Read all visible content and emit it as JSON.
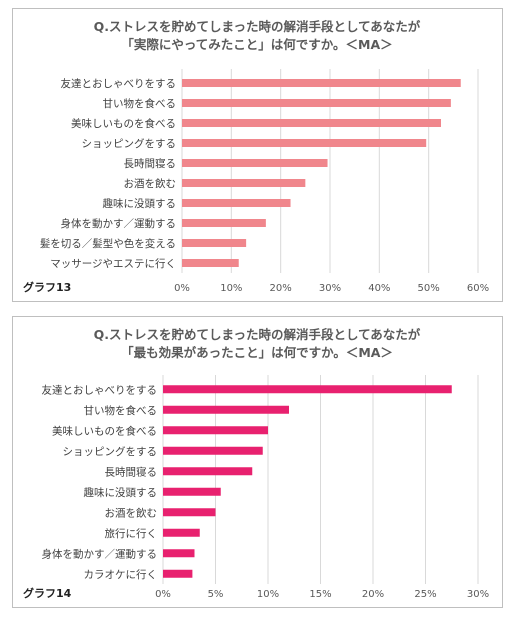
{
  "colors": {
    "chart1_bar": "#f0868c",
    "chart2_bar": "#e8216f",
    "grid": "#d9d9d9"
  },
  "chart_data": [
    {
      "type": "bar",
      "orientation": "horizontal",
      "title_lines": [
        "Q.ストレスを貯めてしまった時の解消手段としてあなたが",
        "「実際にやってみたこと」は何ですか。＜MA＞"
      ],
      "graph_label": "グラフ13",
      "categories": [
        "友達とおしゃべりをする",
        "甘い物を食べる",
        "美味しいものを食べる",
        "ショッピングをする",
        "長時間寝る",
        "お酒を飲む",
        "趣味に没頭する",
        "身体を動かす／運動する",
        "髪を切る／髪型や色を変える",
        "マッサージやエステに行く"
      ],
      "values": [
        56.5,
        54.5,
        52.5,
        49.5,
        29.5,
        25.0,
        22.0,
        17.0,
        13.0,
        11.5
      ],
      "xlim": [
        0,
        60
      ],
      "x_ticks": [
        "0%",
        "10%",
        "20%",
        "30%",
        "40%",
        "50%",
        "60%"
      ],
      "grid": true
    },
    {
      "type": "bar",
      "orientation": "horizontal",
      "title_lines": [
        "Q.ストレスを貯めてしまった時の解消手段としてあなたが",
        "「最も効果があったこと」は何ですか。＜MA＞"
      ],
      "graph_label": "グラフ14",
      "categories": [
        "友達とおしゃべりをする",
        "甘い物を食べる",
        "美味しいものを食べる",
        "ショッピングをする",
        "長時間寝る",
        "趣味に没頭する",
        "お酒を飲む",
        "旅行に行く",
        "身体を動かす／運動する",
        "カラオケに行く"
      ],
      "values": [
        27.5,
        12.0,
        10.0,
        9.5,
        8.5,
        5.5,
        5.0,
        3.5,
        3.0,
        2.8
      ],
      "xlim": [
        0,
        30
      ],
      "x_ticks": [
        "0%",
        "5%",
        "10%",
        "15%",
        "20%",
        "25%",
        "30%"
      ],
      "grid": true
    }
  ]
}
